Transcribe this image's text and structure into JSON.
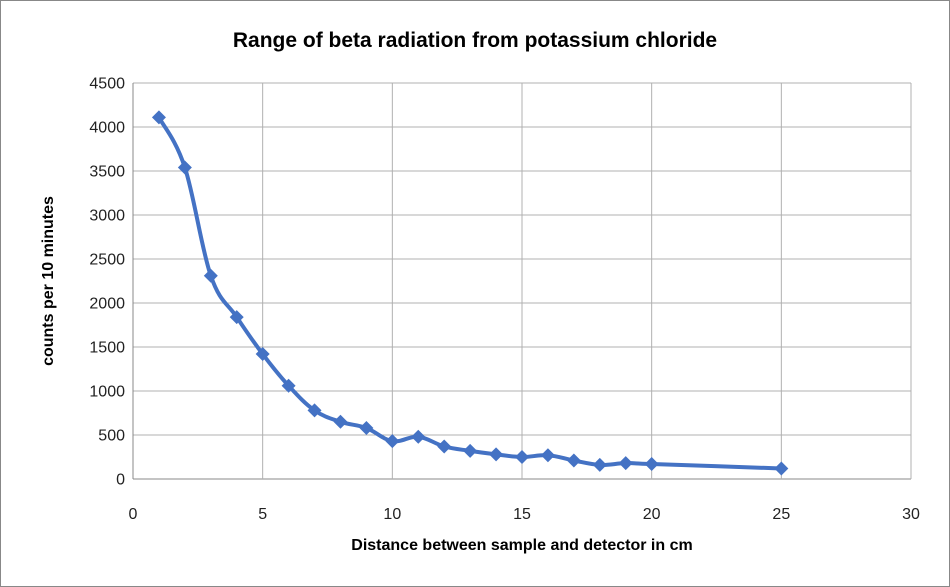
{
  "chart_data": {
    "type": "line",
    "title": "Range of beta radiation from potassium chloride",
    "xlabel": "Distance between sample and detector in cm",
    "ylabel": "counts per 10 minutes",
    "xlim": [
      0,
      30
    ],
    "ylim": [
      0,
      4500
    ],
    "xticks": [
      0,
      5,
      10,
      15,
      20,
      25,
      30
    ],
    "yticks": [
      0,
      500,
      1000,
      1500,
      2000,
      2500,
      3000,
      3500,
      4000,
      4500
    ],
    "grid": true,
    "legend": "none",
    "series": [
      {
        "name": "counts",
        "color": "#4472C4",
        "marker": "diamond",
        "smooth": true,
        "x": [
          1,
          2,
          3,
          4,
          5,
          6,
          7,
          8,
          9,
          10,
          11,
          12,
          13,
          14,
          15,
          16,
          17,
          18,
          19,
          20,
          25
        ],
        "y": [
          4110,
          3540,
          2310,
          1840,
          1420,
          1060,
          780,
          650,
          580,
          430,
          480,
          370,
          320,
          280,
          250,
          270,
          210,
          160,
          180,
          170,
          120
        ]
      }
    ]
  }
}
